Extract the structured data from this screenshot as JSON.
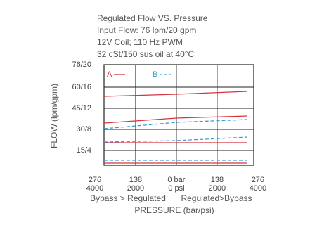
{
  "chart_data": {
    "type": "line",
    "title_lines": [
      "Regulated Flow VS. Pressure",
      "Input Flow: 76 lpm/20 gpm",
      "12V Coil; 110 Hz PWM",
      "32 cSt/150 sus oil at 40°C"
    ],
    "ylabel": "FLOW (lpm/gpm)",
    "xlabel": "PRESSURE (bar/psi)",
    "x_notes": [
      "Bypass > Regulated",
      "Regulated>Bypass"
    ],
    "xlim": [
      -245,
      262
    ],
    "ylim": [
      4.5,
      76
    ],
    "yticks": [
      {
        "value": 15,
        "label": "15/4"
      },
      {
        "value": 30,
        "label": "30/8"
      },
      {
        "value": 45,
        "label": "45/12"
      },
      {
        "value": 60,
        "label": "60/16"
      },
      {
        "value": 76,
        "label": "76/20"
      }
    ],
    "xticks": [
      {
        "value": -276,
        "label": "276"
      },
      {
        "value": -138,
        "label": "138"
      },
      {
        "value": 0,
        "label": "0 bar"
      },
      {
        "value": 138,
        "label": "138"
      },
      {
        "value": 276,
        "label": "276"
      }
    ],
    "xticks_psi": [
      "4000",
      "2000",
      "0 psi",
      "2000",
      "4000"
    ],
    "grid": true,
    "x": [
      -245,
      0,
      240
    ],
    "series": [
      {
        "name": "A",
        "color": "#d6343f",
        "dashed": false,
        "lines": [
          [
            53.5,
            55,
            57
          ],
          [
            34.5,
            38,
            39.5
          ],
          [
            20.5,
            20.5,
            20.5
          ],
          [
            6,
            6,
            6
          ]
        ]
      },
      {
        "name": "B",
        "color": "#3a9fd0",
        "dashed": true,
        "lines": [
          [
            30.5,
            35,
            37
          ],
          [
            21,
            22,
            24.5
          ],
          [
            8,
            8,
            8
          ]
        ]
      }
    ]
  }
}
